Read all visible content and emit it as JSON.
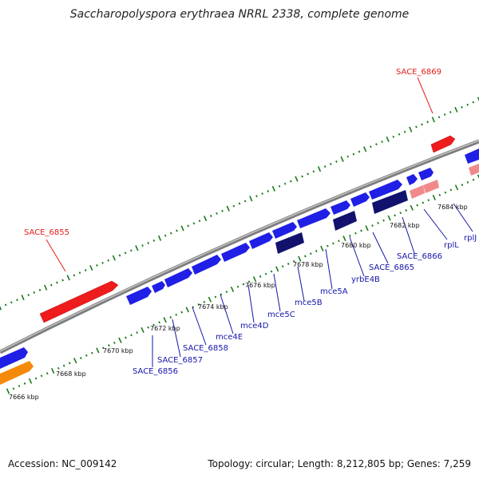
{
  "title": "Saccharopolyspora erythraea NRRL 2338, complete genome",
  "footer": {
    "accession": "Accession: NC_009142",
    "summary": "Topology: circular; Length: 8,212,805 bp; Genes: 7,259"
  },
  "colors": {
    "forward_gene": "#1f1fe6",
    "reverse_gene": "#ee1c1c",
    "dark_gene": "#12126e",
    "pink_gene": "#f08a8a",
    "orange_gene": "#f58a0a",
    "backbone": "#8c8c8c",
    "tick": "#1a7a1a",
    "gene_label": "#1515aa",
    "red_label": "#e61b1b"
  },
  "scale": {
    "kbp_labels": [
      "7666 kbp",
      "7668 kbp",
      "7670 kbp",
      "7672 kbp",
      "7674 kbp",
      "7676 kbp",
      "7678 kbp",
      "7680 kbp",
      "7682 kbp",
      "7684 kbp"
    ]
  },
  "genes": {
    "labels": [
      "SACE_6856",
      "SACE_6857",
      "SACE_6858",
      "mce4E",
      "mce4D",
      "mce5C",
      "mce5B",
      "mce5A",
      "yrbE4B",
      "SACE_6865",
      "SACE_6866",
      "rplL",
      "rplJ"
    ],
    "red_labels": [
      "SACE_6855",
      "SACE_6869"
    ]
  }
}
